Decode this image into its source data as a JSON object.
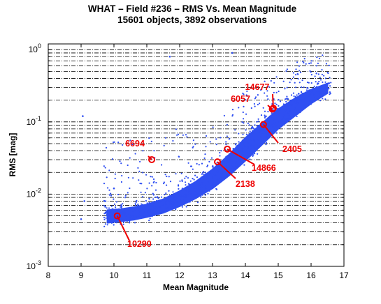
{
  "chart_data": {
    "type": "scatter",
    "title": "WHAT – Field #236 – RMS Vs. Mean Magnitude",
    "subtitle": "15601 objects, 3892 observations",
    "xlabel": "Mean Magnitude",
    "ylabel": "RMS [mag]",
    "xlim": [
      8,
      17
    ],
    "ylim": [
      0.001,
      1.2
    ],
    "yscale": "log",
    "x_ticks": [
      "8",
      "9",
      "10",
      "11",
      "12",
      "13",
      "14",
      "15",
      "16",
      "17"
    ],
    "y_ticks": [
      {
        "base": "10",
        "exp": "0",
        "value": 1
      },
      {
        "base": "10",
        "exp": "-1",
        "value": 0.1
      },
      {
        "base": "10",
        "exp": "-2",
        "value": 0.01
      },
      {
        "base": "10",
        "exp": "-3",
        "value": 0.001
      }
    ],
    "grid": "horizontal dash-dot lines",
    "point_color": "#2f4ff2",
    "annotation_color": "#ee0000",
    "trend_band": {
      "x": [
        9.8,
        10.2,
        10.6,
        11.0,
        11.5,
        12.0,
        12.5,
        13.0,
        13.5,
        14.0,
        14.5,
        15.0,
        15.5,
        16.0,
        16.5
      ],
      "rms_low": [
        0.004,
        0.0042,
        0.0044,
        0.0048,
        0.0055,
        0.0068,
        0.0088,
        0.012,
        0.018,
        0.029,
        0.048,
        0.08,
        0.12,
        0.18,
        0.25
      ],
      "rms_high": [
        0.006,
        0.0062,
        0.0066,
        0.0072,
        0.0085,
        0.011,
        0.015,
        0.022,
        0.035,
        0.06,
        0.095,
        0.15,
        0.21,
        0.28,
        0.34
      ]
    },
    "highlighted_objects": [
      {
        "id": "14677",
        "x": 14.85,
        "y": 0.155
      },
      {
        "id": "6057",
        "x": 14.82,
        "y": 0.15
      },
      {
        "id": "6694",
        "x": 11.15,
        "y": 0.03
      },
      {
        "id": "2405",
        "x": 14.55,
        "y": 0.092
      },
      {
        "id": "14866",
        "x": 13.45,
        "y": 0.042
      },
      {
        "id": "2138",
        "x": 13.15,
        "y": 0.028
      },
      {
        "id": "10290",
        "x": 10.1,
        "y": 0.005
      }
    ]
  }
}
